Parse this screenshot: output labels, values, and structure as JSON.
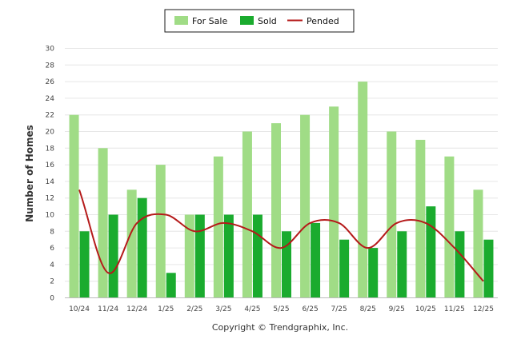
{
  "chart_data": {
    "type": "bar",
    "categories": [
      "10/24",
      "11/24",
      "12/24",
      "1/25",
      "2/25",
      "3/25",
      "4/25",
      "5/25",
      "6/25",
      "7/25",
      "8/25",
      "9/25",
      "10/25",
      "11/25",
      "12/25"
    ],
    "series": [
      {
        "name": "For Sale",
        "kind": "bar",
        "color": "#a0dc86",
        "values": [
          22,
          18,
          13,
          16,
          10,
          17,
          20,
          21,
          22,
          23,
          26,
          20,
          19,
          17,
          13
        ]
      },
      {
        "name": "Sold",
        "kind": "bar",
        "color": "#1aab2e",
        "values": [
          8,
          10,
          12,
          3,
          10,
          10,
          10,
          8,
          9,
          7,
          6,
          8,
          11,
          8,
          7
        ]
      },
      {
        "name": "Pended",
        "kind": "line",
        "color": "#b51a1a",
        "values": [
          13,
          3,
          9,
          10,
          8,
          9,
          8,
          6,
          9,
          9,
          6,
          9,
          9,
          6,
          2
        ]
      }
    ],
    "ylabel": "Number of Homes",
    "yticks": [
      0,
      2,
      4,
      6,
      8,
      10,
      12,
      14,
      16,
      18,
      20,
      22,
      24,
      26,
      28,
      30
    ],
    "ylim": [
      0,
      30
    ],
    "grid": true,
    "legend_position": "top-center",
    "credit": "Copyright © Trendgraphix, Inc."
  }
}
